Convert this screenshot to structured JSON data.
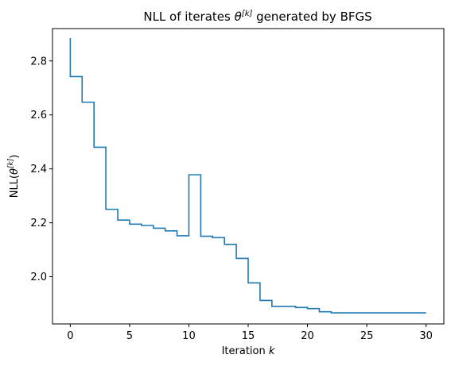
{
  "chart_data": {
    "type": "line",
    "step": "post",
    "title": {
      "prefix": "NLL of iterates ",
      "symbol": "θ",
      "superscript": "[k]",
      "suffix": " generated by BFGS"
    },
    "xlabel": {
      "text": "Iteration ",
      "var": "k"
    },
    "ylabel": {
      "prefix": "NLL(",
      "symbol": "θ",
      "superscript": "[k]",
      "suffix": ")"
    },
    "xlim": [
      -1.5,
      31.5
    ],
    "ylim": [
      1.825,
      2.92
    ],
    "xticks": [
      0,
      5,
      10,
      15,
      20,
      25,
      30
    ],
    "yticks": [
      2.0,
      2.2,
      2.4,
      2.6,
      2.8
    ],
    "xtick_labels": [
      "0",
      "5",
      "10",
      "15",
      "20",
      "25",
      "30"
    ],
    "ytick_labels": [
      "2.0",
      "2.2",
      "2.4",
      "2.6",
      "2.8"
    ],
    "grid": false,
    "legend": "none",
    "series": [
      {
        "color": "#1f77b4",
        "x": [
          0,
          0,
          1,
          2,
          3,
          4,
          5,
          6,
          7,
          8,
          9,
          10,
          11,
          12,
          13,
          14,
          15,
          16,
          17,
          18,
          19,
          20,
          21,
          22,
          23,
          24,
          25,
          26,
          27,
          28,
          29,
          30
        ],
        "y": [
          2.885,
          2.742,
          2.647,
          2.48,
          2.25,
          2.21,
          2.195,
          2.19,
          2.18,
          2.17,
          2.152,
          2.378,
          2.15,
          2.145,
          2.12,
          2.068,
          1.977,
          1.912,
          1.89,
          1.89,
          1.886,
          1.882,
          1.87,
          1.866,
          1.866,
          1.866,
          1.866,
          1.866,
          1.866,
          1.866,
          1.866,
          1.866
        ]
      }
    ]
  }
}
